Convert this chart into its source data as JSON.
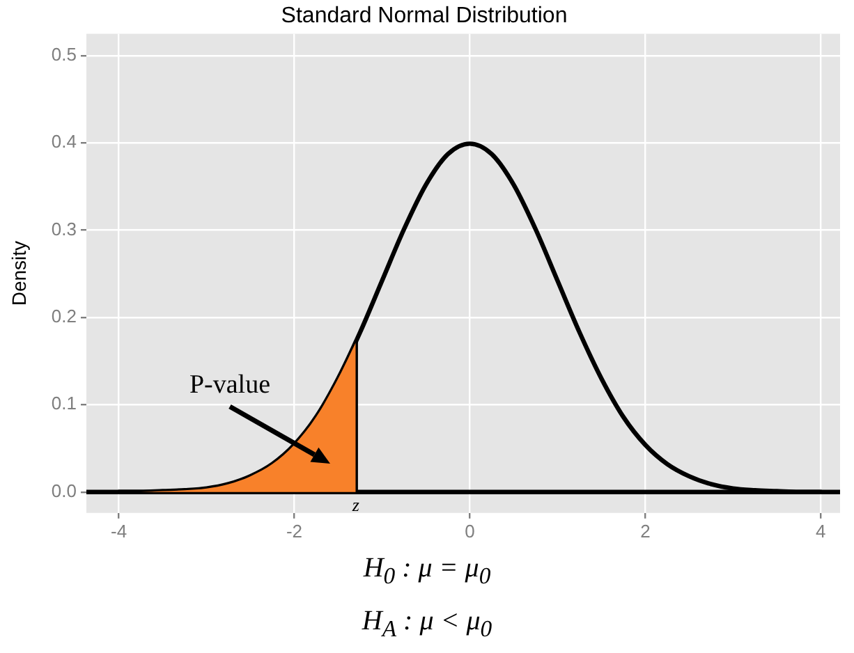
{
  "chart_data": {
    "type": "line",
    "title": "Standard Normal Distribution",
    "ylabel": "Density",
    "xlim": [
      -4.37,
      4.22
    ],
    "xticks": [
      -4,
      -2,
      0,
      2,
      4
    ],
    "ylim": [
      -0.024,
      0.525
    ],
    "yticks": [
      {
        "value": 0,
        "label": "0.0"
      },
      {
        "value": 0.1,
        "label": "0.1"
      },
      {
        "value": 0.2,
        "label": "0.2"
      },
      {
        "value": 0.3,
        "label": "0.3"
      },
      {
        "value": 0.4,
        "label": "0.4"
      },
      {
        "value": 0.5,
        "label": "0.5"
      }
    ],
    "ref_lines": [
      {
        "axis": "y",
        "value": 0,
        "color": "#000000"
      }
    ],
    "grid": true,
    "legend": false,
    "marker": "none",
    "line_style": "solid",
    "series": [
      {
        "type": "area",
        "color": "#f8812a",
        "x": [
          -4,
          -3.75,
          -3.5,
          -3.25,
          -3,
          -2.75,
          -2.5,
          -2.25,
          -2,
          -1.75,
          -1.5,
          -1.3
        ],
        "values": [
          0.0,
          0.0,
          0.001,
          0.002,
          0.004,
          0.009,
          0.018,
          0.032,
          0.054,
          0.086,
          0.13,
          0.171
        ]
      },
      {
        "color": "#000000",
        "x": [
          -4,
          -3.75,
          -3.5,
          -3.25,
          -3,
          -2.75,
          -2.5,
          -2.25,
          -2,
          -1.75,
          -1.5,
          -1.25,
          -1,
          -0.75,
          -0.5,
          -0.25,
          0,
          0.25,
          0.5,
          0.75,
          1,
          1.25,
          1.5,
          1.75,
          2,
          2.25,
          2.5,
          2.75,
          3,
          3.25,
          3.5,
          3.75,
          4
        ],
        "values": [
          0.0,
          0.0,
          0.001,
          0.002,
          0.004,
          0.009,
          0.018,
          0.032,
          0.054,
          0.086,
          0.13,
          0.183,
          0.242,
          0.301,
          0.352,
          0.387,
          0.399,
          0.387,
          0.352,
          0.301,
          0.242,
          0.183,
          0.13,
          0.086,
          0.054,
          0.032,
          0.018,
          0.009,
          0.004,
          0.002,
          0.001,
          0.0,
          0.0
        ]
      },
      {
        "color": "#000000",
        "x": [
          -1.3,
          -1.3
        ],
        "values": [
          0,
          0.171
        ]
      }
    ],
    "annotations": [
      "P-value",
      "z",
      "H$_{0}$ :  μ = μ$_{0}$",
      "H$_{A}$ :  μ < μ$_{0}$"
    ]
  }
}
